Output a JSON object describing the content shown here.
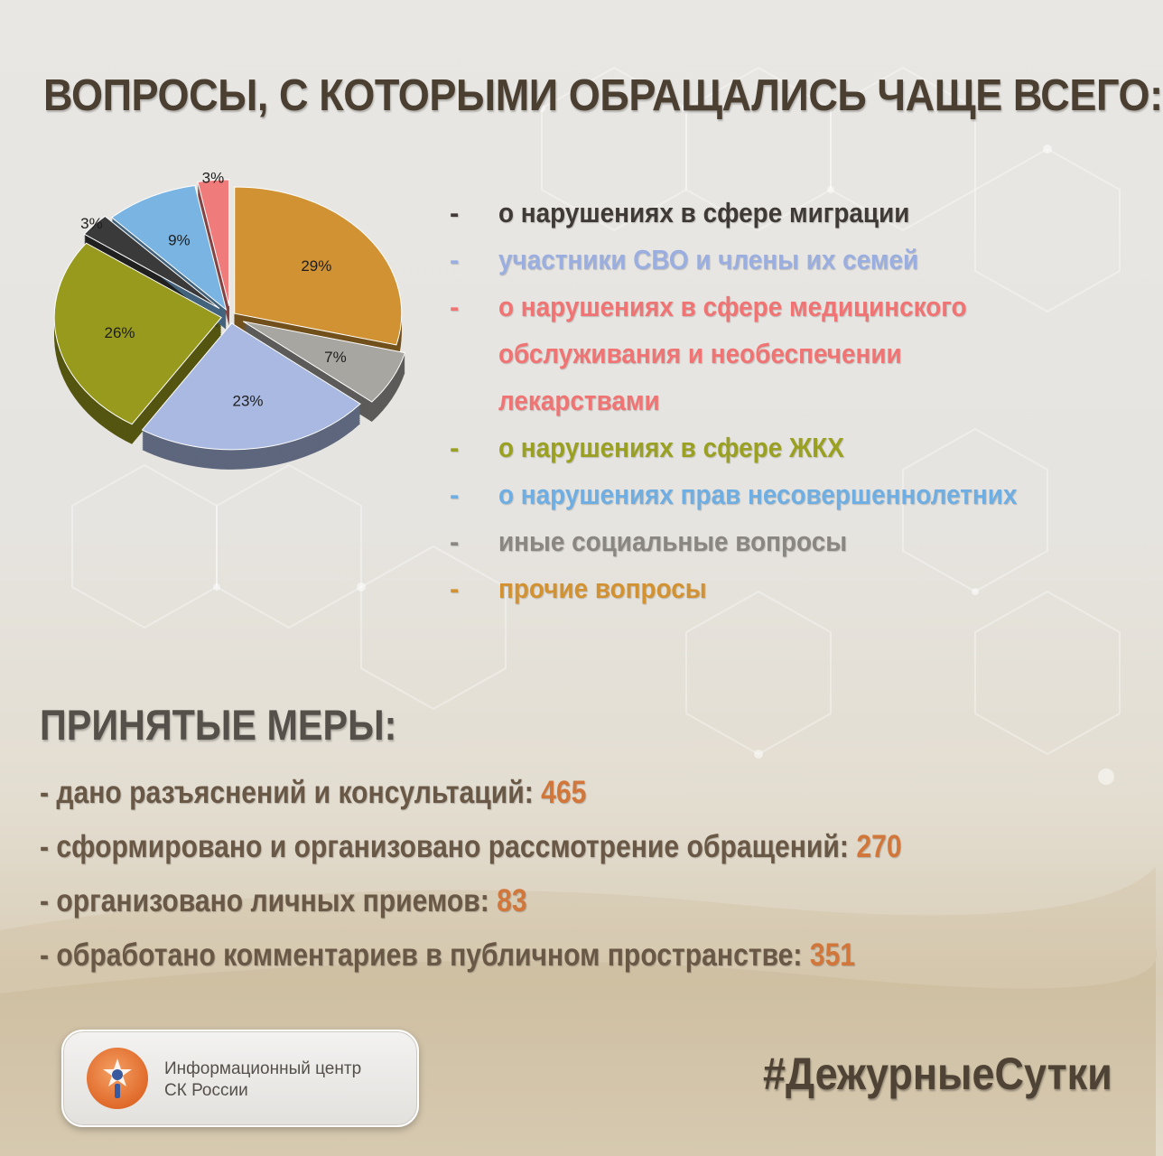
{
  "title": "ВОПРОСЫ, С КОТОРЫМИ ОБРАЩАЛИСЬ ЧАЩЕ ВСЕГО:",
  "chart_data": {
    "type": "pie",
    "slices": [
      {
        "label": "прочие вопросы",
        "value": 29,
        "display": "29%",
        "color": "#d09233"
      },
      {
        "label": "иные социальные вопросы",
        "value": 7,
        "display": "7%",
        "color": "#a8a6a1"
      },
      {
        "label": "участники СВО и члены их семей",
        "value": 23,
        "display": "23%",
        "color": "#a9b9e2"
      },
      {
        "label": "о нарушениях в сфере ЖКХ",
        "value": 26,
        "display": "26%",
        "color": "#989a1d"
      },
      {
        "label": "о нарушениях в сфере миграции",
        "value": 3,
        "display": "3%",
        "color": "#3b3a3a"
      },
      {
        "label": "о нарушениях прав несовершеннолетних",
        "value": 9,
        "display": "9%",
        "color": "#79b4e2"
      },
      {
        "label": "о нарушениях в сфере медицинского обслуживания и необеспечении лекарствами",
        "value": 3,
        "display": "3%",
        "color": "#f07b7b"
      }
    ]
  },
  "legend": [
    {
      "dash": "-",
      "text": "о нарушениях в сфере миграции",
      "color": "#3f3a35"
    },
    {
      "dash": "-",
      "text": "участники СВО и члены их семей",
      "color": "#9aaee0"
    },
    {
      "dash": "-",
      "text": "о нарушениях в сфере медицинского",
      "color": "#f07474"
    },
    {
      "dash": "",
      "text": "обслуживания и необеспечении",
      "color": "#f07474"
    },
    {
      "dash": "",
      "text": "лекарствами",
      "color": "#f07474"
    },
    {
      "dash": "-",
      "text": "о нарушениях в сфере ЖКХ",
      "color": "#9aa022"
    },
    {
      "dash": "-",
      "text": "о нарушениях прав несовершеннолетних",
      "color": "#6eaee2"
    },
    {
      "dash": "-",
      "text": "иные социальные вопросы",
      "color": "#8a8681"
    },
    {
      "dash": "-",
      "text": "прочие вопросы",
      "color": "#d39232"
    }
  ],
  "measures": {
    "title": "ПРИНЯТЫЕ МЕРЫ:",
    "items": [
      {
        "label": "- дано разъяснений и консультаций:",
        "value": "465"
      },
      {
        "label": "- сформировано и организовано рассмотрение обращений:",
        "value": "270"
      },
      {
        "label": "- организовано личных приемов:",
        "value": "83"
      },
      {
        "label": "- обработано комментариев в публичном пространстве:",
        "value": "351"
      }
    ]
  },
  "badge": {
    "line1": "Информационный центр",
    "line2": "СК России"
  },
  "hashtag": "#ДежурныеСутки"
}
